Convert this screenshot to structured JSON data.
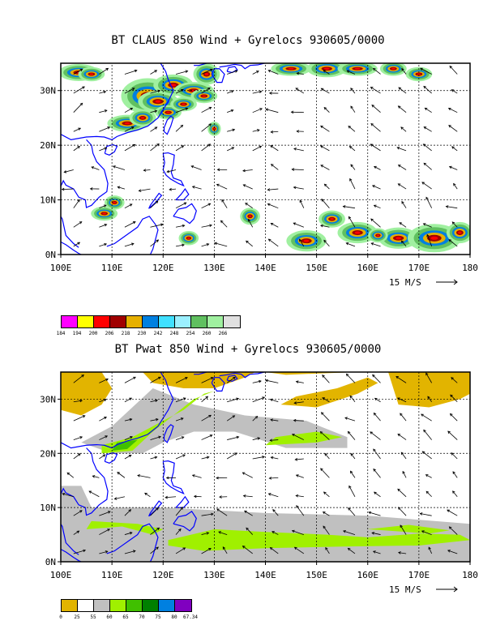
{
  "panels": [
    {
      "title": "BT CLAUS 850 Wind + Gyrelocs 930605/0000",
      "lon_labels": [
        "100E",
        "110E",
        "120E",
        "130E",
        "140E",
        "150E",
        "160E",
        "170E",
        "180"
      ],
      "lat_labels": [
        "0N",
        "10N",
        "20N",
        "30N"
      ],
      "vector_scale_label": "15 M/S",
      "legend": {
        "labels": [
          "184",
          "194",
          "200",
          "206",
          "218",
          "230",
          "242",
          "248",
          "254",
          "260",
          "266"
        ],
        "colors": [
          "#ff00ff",
          "#ffff00",
          "#ff0000",
          "#a00000",
          "#e6b000",
          "#0080e0",
          "#40e0ff",
          "#9bf0ff",
          "#60c060",
          "#a0f0a0",
          "#e0e0e0"
        ]
      }
    },
    {
      "title": "BT Pwat 850 Wind + Gyrelocs 930605/0000",
      "lon_labels": [
        "100E",
        "110E",
        "120E",
        "130E",
        "140E",
        "150E",
        "160E",
        "170E",
        "180"
      ],
      "lat_labels": [
        "0N",
        "10N",
        "20N",
        "30N"
      ],
      "vector_scale_label": "15 M/S",
      "legend": {
        "labels": [
          "0",
          "25",
          "55",
          "60",
          "65",
          "70",
          "75",
          "80",
          "67.34"
        ],
        "colors": [
          "#e2b400",
          "#ffffff",
          "#c0c0c0",
          "#a0f000",
          "#40c000",
          "#008000",
          "#0080e0",
          "#8000c0"
        ]
      }
    }
  ],
  "map_extent": {
    "lon": [
      100,
      180
    ],
    "lat": [
      0,
      35
    ]
  },
  "colors": {
    "coastline": "#0000ff",
    "grid": "#000000",
    "vector": "#000000"
  }
}
